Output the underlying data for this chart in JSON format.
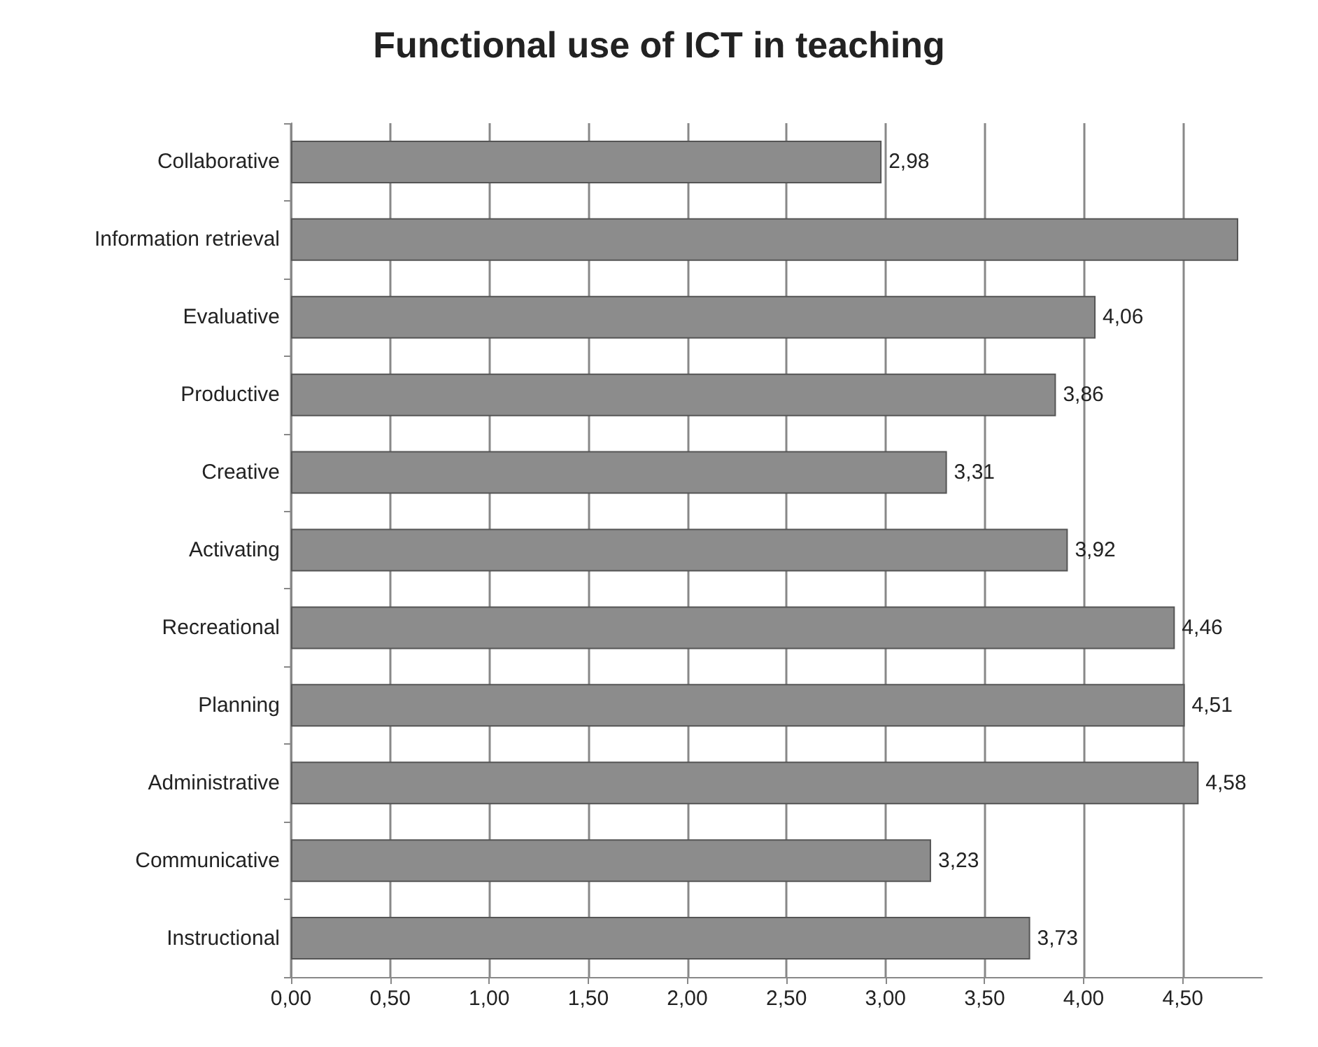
{
  "chart_data": {
    "type": "bar",
    "orientation": "horizontal",
    "title": "Functional use of ICT in teaching",
    "categories": [
      "Collaborative",
      "Information retrieval",
      "Evaluative",
      "Productive",
      "Creative",
      "Activating",
      "Recreational",
      "Planning",
      "Administrative",
      "Communicative",
      "Instructional"
    ],
    "values": [
      2.98,
      4.78,
      4.06,
      3.86,
      3.31,
      3.92,
      4.46,
      4.51,
      4.58,
      3.23,
      3.73
    ],
    "value_labels": [
      "2,98",
      null,
      "4,06",
      "3,86",
      "3,31",
      "3,92",
      "4,46",
      "4,51",
      "4,58",
      "3,23",
      "3,73"
    ],
    "color": "#8c8c8c",
    "xlim": [
      0,
      4.9
    ],
    "xticks": [
      {
        "value": 0,
        "label": "0,00"
      },
      {
        "value": 0.5,
        "label": "0,50"
      },
      {
        "value": 1,
        "label": "1,00"
      },
      {
        "value": 1.5,
        "label": "1,50"
      },
      {
        "value": 2,
        "label": "2,00"
      },
      {
        "value": 2.5,
        "label": "2,50"
      },
      {
        "value": 3,
        "label": "3,00"
      },
      {
        "value": 3.5,
        "label": "3,50"
      },
      {
        "value": 4,
        "label": "4,00"
      },
      {
        "value": 4.5,
        "label": "4,50"
      }
    ],
    "grid": "x"
  }
}
